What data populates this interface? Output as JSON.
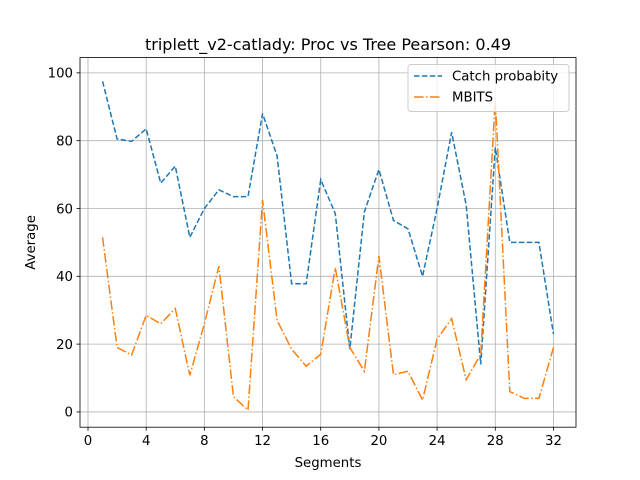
{
  "chart_data": {
    "type": "line",
    "title": "triplett_v2-catlady: Proc vs Tree Pearson: 0.49",
    "xlabel": "Segments",
    "ylabel": "Average",
    "xlim": [
      -0.55,
      33.55
    ],
    "ylim": [
      -4.5,
      104.5
    ],
    "xticks": [
      0,
      4,
      8,
      12,
      16,
      20,
      24,
      28,
      32
    ],
    "yticks": [
      0,
      20,
      40,
      60,
      80,
      100
    ],
    "grid": true,
    "legend_position": "top-right",
    "x": [
      1,
      2,
      3,
      4,
      5,
      6,
      7,
      8,
      9,
      10,
      11,
      12,
      13,
      14,
      15,
      16,
      17,
      18,
      19,
      20,
      21,
      22,
      23,
      24,
      25,
      26,
      27,
      28,
      29,
      30,
      31,
      32
    ],
    "series": [
      {
        "name": "Catch probabity",
        "color": "#1f77b4",
        "linestyle": "dashed",
        "values": [
          97.5,
          80.5,
          79.8,
          83.5,
          67.5,
          72.5,
          51.5,
          60.0,
          65.5,
          63.5,
          63.5,
          88.0,
          75.5,
          37.8,
          37.8,
          68.5,
          58.5,
          18.5,
          59.0,
          71.5,
          56.5,
          54.0,
          40.0,
          60.0,
          82.5,
          61.0,
          14.0,
          78.0,
          50.0,
          50.0,
          50.0,
          23.0
        ]
      },
      {
        "name": "MBITS",
        "color": "#ff7f0e",
        "linestyle": "dashdot",
        "values": [
          51.5,
          19.0,
          16.8,
          28.5,
          26.0,
          30.5,
          10.8,
          26.0,
          43.0,
          4.5,
          0.5,
          62.5,
          27.0,
          18.5,
          13.5,
          17.0,
          42.5,
          19.0,
          12.0,
          46.0,
          11.0,
          12.0,
          3.5,
          21.5,
          27.5,
          9.5,
          17.0,
          92.0,
          6.0,
          4.0,
          4.0,
          19.0
        ]
      }
    ]
  }
}
